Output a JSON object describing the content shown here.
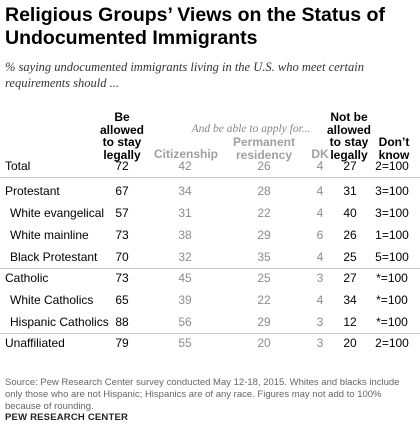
{
  "title": "Religious Groups’ Views on the Status of Undocumented Immigrants",
  "subtitle": "% saying undocumented immigrants living in the U.S. who meet certain requirements should ...",
  "chart_data": {
    "type": "table",
    "super_header": "And be able to apply for...",
    "columns": [
      {
        "key": "stay",
        "label": "Be allowed to stay legally"
      },
      {
        "key": "citizenship",
        "label": "Citizenship"
      },
      {
        "key": "permanent",
        "label": "Permanent residency"
      },
      {
        "key": "dk",
        "label": "DK"
      },
      {
        "key": "not_stay",
        "label": "Not be allowed to stay legally"
      },
      {
        "key": "dont_know",
        "label": "Don’t know"
      }
    ],
    "rows": [
      {
        "label": "Total",
        "stay": "72",
        "citizenship": "42",
        "permanent": "26",
        "dk": "4",
        "not_stay": "27",
        "dont_know": "2=100"
      },
      {
        "label": "Protestant",
        "stay": "67",
        "citizenship": "34",
        "permanent": "28",
        "dk": "4",
        "not_stay": "31",
        "dont_know": "3=100"
      },
      {
        "label": "White evangelical",
        "stay": "57",
        "citizenship": "31",
        "permanent": "22",
        "dk": "4",
        "not_stay": "40",
        "dont_know": "3=100"
      },
      {
        "label": "White mainline",
        "stay": "73",
        "citizenship": "38",
        "permanent": "29",
        "dk": "6",
        "not_stay": "26",
        "dont_know": "1=100"
      },
      {
        "label": "Black Protestant",
        "stay": "70",
        "citizenship": "32",
        "permanent": "35",
        "dk": "4",
        "not_stay": "25",
        "dont_know": "5=100"
      },
      {
        "label": "Catholic",
        "stay": "73",
        "citizenship": "45",
        "permanent": "25",
        "dk": "3",
        "not_stay": "27",
        "dont_know": "*=100"
      },
      {
        "label": "White Catholics",
        "stay": "65",
        "citizenship": "39",
        "permanent": "22",
        "dk": "4",
        "not_stay": "34",
        "dont_know": "*=100"
      },
      {
        "label": "Hispanic Catholics",
        "stay": "88",
        "citizenship": "56",
        "permanent": "29",
        "dk": "3",
        "not_stay": "12",
        "dont_know": "*=100"
      },
      {
        "label": "Unaffiliated",
        "stay": "79",
        "citizenship": "55",
        "permanent": "20",
        "dk": "3",
        "not_stay": "20",
        "dont_know": "2=100"
      }
    ]
  },
  "note": "Source: Pew Research Center survey conducted May 12-18, 2015. Whites and blacks include only those who are not Hispanic; Hispanics are of any race. Figures may not add to 100% because of rounding.",
  "source_org": "PEW RESEARCH CENTER"
}
